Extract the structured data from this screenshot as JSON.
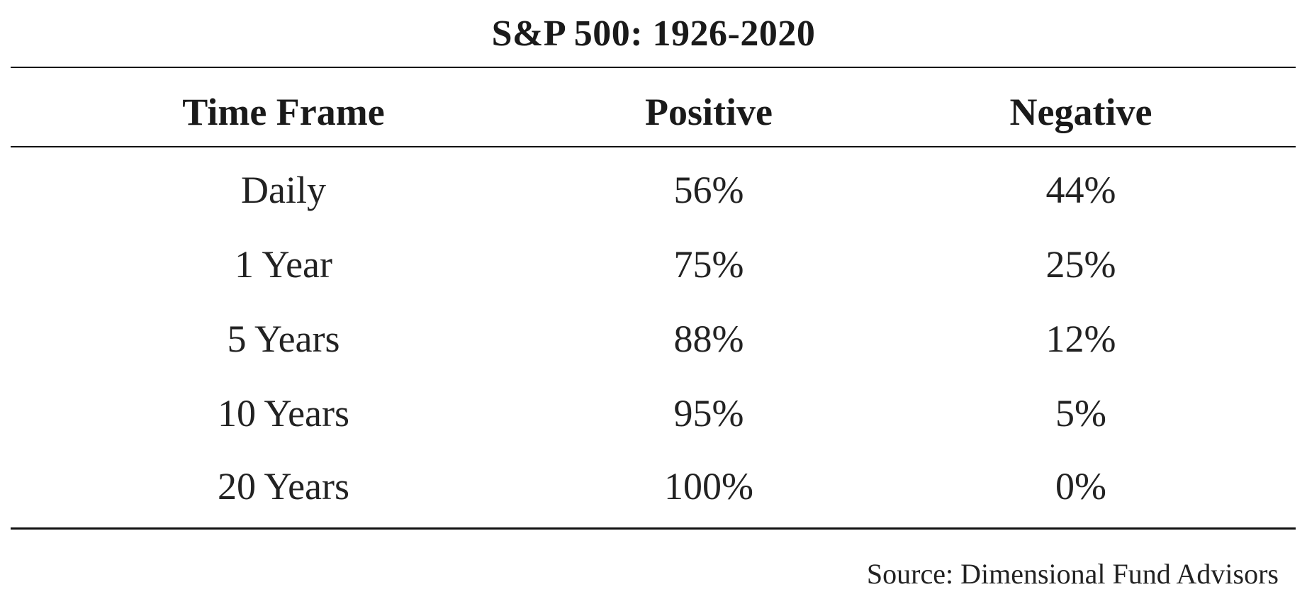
{
  "chart_data": {
    "type": "table",
    "title": "S&P 500: 1926-2020",
    "columns": [
      "Time Frame",
      "Positive",
      "Negative"
    ],
    "rows": [
      [
        "Daily",
        "56%",
        "44%"
      ],
      [
        "1 Year",
        "75%",
        "25%"
      ],
      [
        "5 Years",
        "88%",
        "12%"
      ],
      [
        "10 Years",
        "95%",
        "5%"
      ],
      [
        "20 Years",
        "100%",
        "0%"
      ]
    ],
    "source": "Source: Dimensional Fund Advisors"
  }
}
